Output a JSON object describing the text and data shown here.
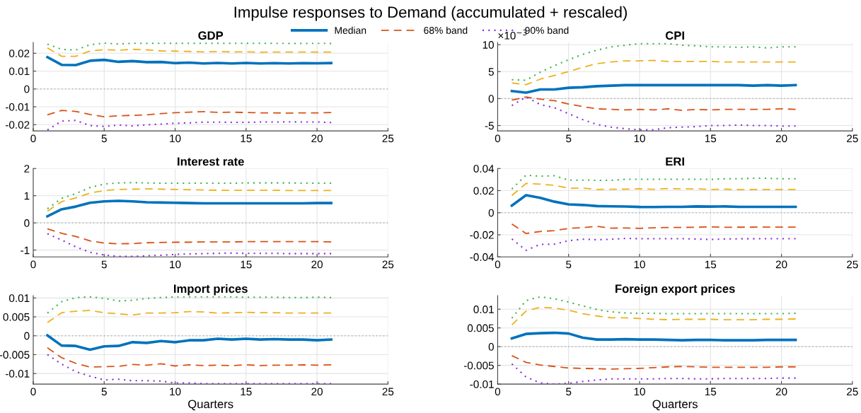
{
  "chart_data": [
    {
      "type": "line",
      "title": "GDP",
      "annotations": [
        "Impulse responses to Demand (accumulated + rescaled)"
      ],
      "legend": "top",
      "grid": true,
      "x": [
        1,
        2,
        3,
        4,
        5,
        6,
        7,
        8,
        9,
        10,
        11,
        12,
        13,
        14,
        15,
        16,
        17,
        18,
        19,
        20,
        21
      ],
      "xlim": [
        0,
        25
      ],
      "xticks": [
        0,
        5,
        10,
        15,
        20,
        25
      ],
      "ylim": [
        -0.0235,
        0.026
      ],
      "yticks": [
        -0.02,
        -0.01,
        0,
        0.01,
        0.02
      ],
      "ref_lines": [
        {
          "axis": "y",
          "value": 0,
          "color": "#999999",
          "line_style": "dotted"
        }
      ],
      "series": [
        {
          "name": "Median",
          "color": "#0072bd",
          "line_style": "solid",
          "values": [
            0.0178,
            0.0135,
            0.0134,
            0.0158,
            0.0163,
            0.0152,
            0.0156,
            0.015,
            0.0151,
            0.0145,
            0.0148,
            0.0143,
            0.0146,
            0.0143,
            0.0146,
            0.0143,
            0.0145,
            0.0143,
            0.0145,
            0.0144,
            0.0145
          ]
        },
        {
          "name": "68% band",
          "color": "#d95319",
          "line_style": "dashed",
          "values": [
            -0.0145,
            -0.012,
            -0.0126,
            -0.0143,
            -0.0156,
            -0.015,
            -0.0148,
            -0.0145,
            -0.0138,
            -0.0133,
            -0.013,
            -0.0127,
            -0.0131,
            -0.013,
            -0.0132,
            -0.0134,
            -0.0134,
            -0.0135,
            -0.0134,
            -0.0134,
            -0.0132
          ]
        },
        {
          "name": "90% band",
          "color": "#8b2be2",
          "line_style": "dotted",
          "values": [
            -0.023,
            -0.018,
            -0.0176,
            -0.0205,
            -0.021,
            -0.0202,
            -0.0207,
            -0.0201,
            -0.0197,
            -0.0192,
            -0.019,
            -0.0186,
            -0.0186,
            -0.0187,
            -0.0187,
            -0.0185,
            -0.0185,
            -0.0184,
            -0.0185,
            -0.0185,
            -0.0188
          ]
        },
        {
          "color": "#edb120",
          "line_style": "dashed",
          "values": [
            0.023,
            0.0183,
            0.0183,
            0.0213,
            0.022,
            0.0217,
            0.0222,
            0.0219,
            0.0213,
            0.0212,
            0.021,
            0.0208,
            0.0209,
            0.0208,
            0.0208,
            0.0206,
            0.0207,
            0.0207,
            0.0207,
            0.0207,
            0.0207
          ]
        },
        {
          "color": "#3cb44b",
          "line_style": "dotted",
          "values": [
            0.0251,
            0.0222,
            0.0218,
            0.0248,
            0.0257,
            0.0252,
            0.0256,
            0.0256,
            0.0256,
            0.0256,
            0.0256,
            0.0256,
            0.0256,
            0.0256,
            0.0256,
            0.0256,
            0.0256,
            0.0255,
            0.0255,
            0.0256,
            0.0255
          ]
        }
      ]
    },
    {
      "type": "line",
      "title": "CPI",
      "annotations": [
        "×10$^{−3}$"
      ],
      "grid": true,
      "x": [
        1,
        2,
        3,
        4,
        5,
        6,
        7,
        8,
        9,
        10,
        11,
        12,
        13,
        14,
        15,
        16,
        17,
        18,
        19,
        20,
        21
      ],
      "xlim": [
        0,
        25
      ],
      "xticks": [
        0,
        5,
        10,
        15,
        20,
        25
      ],
      "ylim": [
        -6,
        10.4
      ],
      "yticks": [
        -5,
        0,
        5,
        10
      ],
      "ref_lines": [
        {
          "axis": "y",
          "value": 0,
          "color": "#999999",
          "line_style": "dotted"
        }
      ],
      "series": [
        {
          "color": "#0072bd",
          "line_style": "solid",
          "values": [
            1.4,
            1.1,
            1.7,
            1.7,
            2.0,
            2.1,
            2.3,
            2.4,
            2.5,
            2.5,
            2.5,
            2.5,
            2.5,
            2.5,
            2.5,
            2.5,
            2.5,
            2.4,
            2.5,
            2.4,
            2.5
          ]
        },
        {
          "color": "#d95319",
          "line_style": "dashed",
          "values": [
            -0.3,
            0.3,
            -0.1,
            -0.4,
            -1.0,
            -1.5,
            -1.9,
            -2.0,
            -2.1,
            -2.0,
            -2.1,
            -1.9,
            -2.2,
            -2.0,
            -2.1,
            -2.0,
            -2.0,
            -2.0,
            -2.0,
            -1.9,
            -2.0
          ]
        },
        {
          "color": "#8b2be2",
          "line_style": "dotted",
          "values": [
            -1.3,
            0.3,
            -1.1,
            -1.7,
            -2.8,
            -3.9,
            -4.8,
            -5.3,
            -5.6,
            -5.8,
            -5.8,
            -5.4,
            -5.3,
            -5.2,
            -5.0,
            -5.0,
            -4.9,
            -5.0,
            -5.0,
            -5.1,
            -5.1
          ]
        },
        {
          "color": "#edb120",
          "line_style": "dashed",
          "values": [
            2.9,
            2.6,
            3.6,
            4.3,
            5.0,
            5.8,
            6.5,
            6.8,
            7.0,
            7.0,
            7.1,
            6.9,
            6.9,
            6.9,
            6.9,
            6.8,
            6.8,
            6.8,
            6.8,
            6.8,
            6.8
          ]
        },
        {
          "color": "#3cb44b",
          "line_style": "dotted",
          "values": [
            3.5,
            3.4,
            4.9,
            6.1,
            7.2,
            8.2,
            9.0,
            9.6,
            9.9,
            10.2,
            10.2,
            10.2,
            9.9,
            9.8,
            9.6,
            9.6,
            9.5,
            9.6,
            9.4,
            9.6,
            9.6
          ]
        }
      ]
    },
    {
      "type": "line",
      "title": "Interest rate",
      "grid": true,
      "x": [
        1,
        2,
        3,
        4,
        5,
        6,
        7,
        8,
        9,
        10,
        11,
        12,
        13,
        14,
        15,
        16,
        17,
        18,
        19,
        20,
        21
      ],
      "xlim": [
        0,
        25
      ],
      "xticks": [
        0,
        5,
        10,
        15,
        20,
        25
      ],
      "ylim": [
        -1.25,
        2
      ],
      "yticks": [
        -1,
        0,
        1,
        2
      ],
      "ref_lines": [
        {
          "axis": "y",
          "value": 0,
          "color": "#999999",
          "line_style": "dotted"
        }
      ],
      "series": [
        {
          "color": "#0072bd",
          "line_style": "solid",
          "values": [
            0.24,
            0.5,
            0.6,
            0.74,
            0.79,
            0.81,
            0.79,
            0.76,
            0.75,
            0.74,
            0.73,
            0.72,
            0.72,
            0.72,
            0.72,
            0.72,
            0.72,
            0.72,
            0.72,
            0.73,
            0.73
          ]
        },
        {
          "color": "#d95319",
          "line_style": "dashed",
          "values": [
            -0.22,
            -0.38,
            -0.5,
            -0.66,
            -0.74,
            -0.77,
            -0.76,
            -0.73,
            -0.72,
            -0.71,
            -0.71,
            -0.7,
            -0.7,
            -0.7,
            -0.69,
            -0.69,
            -0.69,
            -0.69,
            -0.69,
            -0.69,
            -0.7
          ]
        },
        {
          "color": "#8b2be2",
          "line_style": "dotted",
          "values": [
            -0.4,
            -0.63,
            -0.88,
            -1.08,
            -1.18,
            -1.23,
            -1.23,
            -1.21,
            -1.19,
            -1.16,
            -1.14,
            -1.13,
            -1.12,
            -1.11,
            -1.12,
            -1.12,
            -1.12,
            -1.13,
            -1.13,
            -1.13,
            -1.13
          ]
        },
        {
          "color": "#edb120",
          "line_style": "dashed",
          "values": [
            0.43,
            0.78,
            0.92,
            1.1,
            1.19,
            1.23,
            1.24,
            1.25,
            1.24,
            1.23,
            1.22,
            1.21,
            1.2,
            1.2,
            1.2,
            1.2,
            1.2,
            1.19,
            1.19,
            1.19,
            1.19
          ]
        },
        {
          "color": "#3cb44b",
          "line_style": "dotted",
          "values": [
            0.52,
            0.9,
            1.08,
            1.3,
            1.43,
            1.47,
            1.48,
            1.47,
            1.46,
            1.46,
            1.46,
            1.46,
            1.46,
            1.46,
            1.47,
            1.47,
            1.47,
            1.47,
            1.46,
            1.46,
            1.46
          ]
        }
      ]
    },
    {
      "type": "line",
      "title": "ERI",
      "grid": true,
      "x": [
        1,
        2,
        3,
        4,
        5,
        6,
        7,
        8,
        9,
        10,
        11,
        12,
        13,
        14,
        15,
        16,
        17,
        18,
        19,
        20,
        21
      ],
      "xlim": [
        0,
        25
      ],
      "xticks": [
        0,
        5,
        10,
        15,
        20,
        25
      ],
      "ylim": [
        -0.04,
        0.04
      ],
      "yticks": [
        -0.04,
        -0.02,
        0,
        0.02,
        0.04
      ],
      "ref_lines": [
        {
          "axis": "y",
          "value": 0,
          "color": "#999999",
          "line_style": "dotted"
        }
      ],
      "series": [
        {
          "color": "#0072bd",
          "line_style": "solid",
          "values": [
            0.0065,
            0.0158,
            0.0135,
            0.01,
            0.0075,
            0.007,
            0.006,
            0.0058,
            0.0056,
            0.0052,
            0.0051,
            0.0053,
            0.0053,
            0.0057,
            0.0055,
            0.0057,
            0.0053,
            0.0053,
            0.0053,
            0.0053,
            0.0053
          ]
        },
        {
          "color": "#d95319",
          "line_style": "dashed",
          "values": [
            -0.0102,
            -0.0188,
            -0.017,
            -0.0162,
            -0.0142,
            -0.0135,
            -0.0124,
            -0.014,
            -0.0138,
            -0.0142,
            -0.0137,
            -0.0134,
            -0.0133,
            -0.0132,
            -0.0128,
            -0.0132,
            -0.0131,
            -0.0131,
            -0.013,
            -0.013,
            -0.013
          ]
        },
        {
          "color": "#8b2be2",
          "line_style": "dotted",
          "values": [
            -0.0238,
            -0.034,
            -0.0287,
            -0.0285,
            -0.0253,
            -0.024,
            -0.0245,
            -0.024,
            -0.0233,
            -0.0235,
            -0.0235,
            -0.0235,
            -0.0235,
            -0.0238,
            -0.0242,
            -0.0238,
            -0.0236,
            -0.0236,
            -0.0235,
            -0.0235,
            -0.0235
          ]
        },
        {
          "color": "#edb120",
          "line_style": "dashed",
          "values": [
            0.0155,
            0.0265,
            0.0258,
            0.0248,
            0.0222,
            0.0222,
            0.0211,
            0.0212,
            0.0213,
            0.0216,
            0.0212,
            0.0218,
            0.0215,
            0.0216,
            0.0211,
            0.0213,
            0.0209,
            0.021,
            0.021,
            0.021,
            0.021
          ]
        },
        {
          "color": "#3cb44b",
          "line_style": "dotted",
          "values": [
            0.0215,
            0.034,
            0.033,
            0.0335,
            0.0295,
            0.0295,
            0.0293,
            0.0293,
            0.0302,
            0.0302,
            0.0302,
            0.0302,
            0.0302,
            0.0302,
            0.0302,
            0.0307,
            0.0307,
            0.0312,
            0.0312,
            0.0307,
            0.0307
          ]
        }
      ]
    },
    {
      "type": "line",
      "title": "Import prices",
      "xlabel": "Quarters",
      "grid": true,
      "x": [
        1,
        2,
        3,
        4,
        5,
        6,
        7,
        8,
        9,
        10,
        11,
        12,
        13,
        14,
        15,
        16,
        17,
        18,
        19,
        20,
        21
      ],
      "xlim": [
        0,
        25
      ],
      "xticks": [
        0,
        5,
        10,
        15,
        20,
        25
      ],
      "ylim": [
        -0.0128,
        0.0106
      ],
      "yticks": [
        -0.01,
        -0.005,
        0,
        0.005,
        0.01
      ],
      "ref_lines": [
        {
          "axis": "y",
          "value": 0,
          "color": "#999999",
          "line_style": "dotted"
        }
      ],
      "series": [
        {
          "color": "#0072bd",
          "line_style": "solid",
          "values": [
            0.0001,
            -0.0026,
            -0.0027,
            -0.0037,
            -0.0028,
            -0.0027,
            -0.0017,
            -0.0019,
            -0.0014,
            -0.0017,
            -0.0012,
            -0.0012,
            -0.0008,
            -0.001,
            -0.0008,
            -0.001,
            -0.0009,
            -0.001,
            -0.001,
            -0.0012,
            -0.001
          ]
        },
        {
          "color": "#d95319",
          "line_style": "dashed",
          "values": [
            -0.0032,
            -0.0058,
            -0.0073,
            -0.0083,
            -0.0082,
            -0.0081,
            -0.0076,
            -0.0078,
            -0.0074,
            -0.008,
            -0.0077,
            -0.0079,
            -0.0078,
            -0.0079,
            -0.0077,
            -0.0079,
            -0.0078,
            -0.0078,
            -0.0077,
            -0.0078,
            -0.0077
          ]
        },
        {
          "color": "#8b2be2",
          "line_style": "dotted",
          "values": [
            -0.005,
            -0.0075,
            -0.0095,
            -0.0107,
            -0.0117,
            -0.0115,
            -0.0119,
            -0.0119,
            -0.012,
            -0.0125,
            -0.0125,
            -0.0127,
            -0.0127,
            -0.0127,
            -0.0127,
            -0.0127,
            -0.0127,
            -0.0127,
            -0.0127,
            -0.0127,
            -0.0127
          ]
        },
        {
          "color": "#edb120",
          "line_style": "dashed",
          "values": [
            0.0035,
            0.0061,
            0.0065,
            0.0067,
            0.0061,
            0.0058,
            0.0055,
            0.006,
            0.006,
            0.0061,
            0.0064,
            0.0063,
            0.006,
            0.0061,
            0.0062,
            0.0061,
            0.0061,
            0.006,
            0.006,
            0.006,
            0.006
          ]
        },
        {
          "color": "#3cb44b",
          "line_style": "dotted",
          "values": [
            0.006,
            0.009,
            0.0101,
            0.0103,
            0.0099,
            0.0092,
            0.0094,
            0.0099,
            0.0101,
            0.0103,
            0.0103,
            0.0103,
            0.0103,
            0.0103,
            0.0102,
            0.0102,
            0.0102,
            0.0101,
            0.0101,
            0.0102,
            0.0101
          ]
        }
      ]
    },
    {
      "type": "line",
      "title": "Foreign export prices",
      "xlabel": "Quarters",
      "grid": true,
      "x": [
        1,
        2,
        3,
        4,
        5,
        6,
        7,
        8,
        9,
        10,
        11,
        12,
        13,
        14,
        15,
        16,
        17,
        18,
        19,
        20,
        21
      ],
      "xlim": [
        0,
        25
      ],
      "xticks": [
        0,
        5,
        10,
        15,
        20,
        25
      ],
      "ylim": [
        -0.01,
        0.0136
      ],
      "yticks": [
        -0.01,
        -0.005,
        0,
        0.005,
        0.01
      ],
      "ref_lines": [
        {
          "axis": "y",
          "value": 0,
          "color": "#999999",
          "line_style": "dotted"
        }
      ],
      "series": [
        {
          "color": "#0072bd",
          "line_style": "solid",
          "values": [
            0.0022,
            0.0034,
            0.0036,
            0.0037,
            0.0035,
            0.0024,
            0.0019,
            0.0019,
            0.002,
            0.0019,
            0.0019,
            0.0018,
            0.0017,
            0.0018,
            0.0018,
            0.0017,
            0.0017,
            0.0017,
            0.0018,
            0.0018,
            0.0018
          ]
        },
        {
          "color": "#d95319",
          "line_style": "dashed",
          "values": [
            -0.0024,
            -0.0042,
            -0.0049,
            -0.0053,
            -0.0057,
            -0.0058,
            -0.0059,
            -0.006,
            -0.0059,
            -0.0058,
            -0.0056,
            -0.0054,
            -0.0053,
            -0.0054,
            -0.0055,
            -0.0055,
            -0.0055,
            -0.0055,
            -0.0055,
            -0.0054,
            -0.0054
          ]
        },
        {
          "color": "#8b2be2",
          "line_style": "dotted",
          "values": [
            -0.0046,
            -0.0081,
            -0.0097,
            -0.01,
            -0.0098,
            -0.0093,
            -0.0089,
            -0.0086,
            -0.0086,
            -0.0086,
            -0.0086,
            -0.0085,
            -0.0085,
            -0.0086,
            -0.0086,
            -0.0085,
            -0.0085,
            -0.0085,
            -0.0085,
            -0.0084,
            -0.0084
          ]
        },
        {
          "color": "#edb120",
          "line_style": "dashed",
          "values": [
            0.0058,
            0.0095,
            0.0105,
            0.0103,
            0.0097,
            0.0088,
            0.0082,
            0.0077,
            0.0077,
            0.0075,
            0.0073,
            0.0072,
            0.0073,
            0.0073,
            0.0073,
            0.0072,
            0.0072,
            0.0072,
            0.0073,
            0.0073,
            0.0074
          ]
        },
        {
          "color": "#3cb44b",
          "line_style": "dotted",
          "values": [
            0.0076,
            0.0123,
            0.0133,
            0.0128,
            0.0119,
            0.0109,
            0.0099,
            0.0093,
            0.009,
            0.0089,
            0.0089,
            0.0088,
            0.0088,
            0.0088,
            0.0088,
            0.0088,
            0.0088,
            0.0088,
            0.0088,
            0.0088,
            0.0089
          ]
        }
      ]
    }
  ]
}
